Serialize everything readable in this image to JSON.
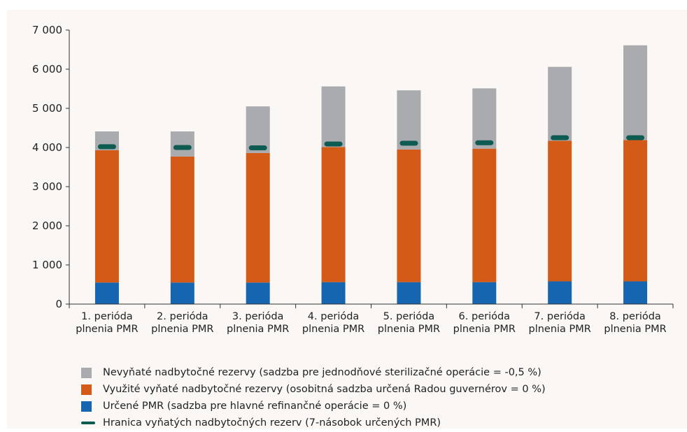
{
  "chart_data": {
    "type": "bar",
    "stacked": true,
    "categories": [
      [
        "1. perióda",
        "plnenia PMR"
      ],
      [
        "2. perióda",
        "plnenia PMR"
      ],
      [
        "3. perióda",
        "plnenia PMR"
      ],
      [
        "4. perióda",
        "plnenia PMR"
      ],
      [
        "5. perióda",
        "plnenia PMR"
      ],
      [
        "6. perióda",
        "plnenia PMR"
      ],
      [
        "7. perióda",
        "plnenia PMR"
      ],
      [
        "8. perióda",
        "plnenia PMR"
      ]
    ],
    "series": [
      {
        "name": "Určené PMR (sadzba pre hlavné refinančné operácie = 0 %)",
        "color": "#1565b0",
        "values": [
          550,
          550,
          550,
          560,
          560,
          560,
          580,
          580
        ]
      },
      {
        "name": "Využité vyňaté nadbytočné rezervy (osobitná sadzba určená Radou guvernérov = 0 %)",
        "color": "#d35a17",
        "values": [
          3380,
          3220,
          3310,
          3450,
          3390,
          3410,
          3590,
          3610
        ]
      },
      {
        "name": "Nevyňaté nadbytočné rezervy (sadzba pre jednodňové sterilizačné operácie = -0,5 %)",
        "color": "#a9abae",
        "values": [
          480,
          640,
          1190,
          1550,
          1510,
          1540,
          1890,
          2420
        ]
      }
    ],
    "threshold": {
      "name": "Hranica vyňatých nadbytočných rezerv (7-násobok určených PMR)",
      "color": "#0e5b52",
      "values": [
        4020,
        4000,
        3990,
        4090,
        4110,
        4120,
        4250,
        4250
      ]
    },
    "ylim": [
      0,
      7000
    ],
    "yticks": [
      0,
      1000,
      2000,
      3000,
      4000,
      5000,
      6000,
      7000
    ],
    "ytick_labels": [
      "0",
      "1 000",
      "2 000",
      "3 000",
      "4 000",
      "5 000",
      "6 000",
      "7 000"
    ],
    "title": "",
    "xlabel": "",
    "ylabel": "",
    "grid": false,
    "legend_position": "bottom"
  },
  "legend": [
    {
      "kind": "box",
      "label": "Nevyňaté nadbytočné rezervy (sadzba pre jednodňové sterilizačné operácie = -0,5 %)",
      "color": "#a9abae"
    },
    {
      "kind": "box",
      "label": "Využité vyňaté nadbytočné rezervy (osobitná sadzba určená Radou guvernérov = 0 %)",
      "color": "#d35a17"
    },
    {
      "kind": "box",
      "label": "Určené PMR (sadzba pre hlavné refinančné operácie = 0 %)",
      "color": "#1565b0"
    },
    {
      "kind": "line",
      "label": "Hranica vyňatých nadbytočných rezerv (7-násobok určených PMR)",
      "color": "#0e5b52"
    }
  ]
}
